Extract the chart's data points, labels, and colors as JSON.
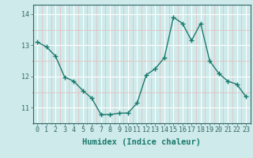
{
  "x": [
    0,
    1,
    2,
    3,
    4,
    5,
    6,
    7,
    8,
    9,
    10,
    11,
    12,
    13,
    14,
    15,
    16,
    17,
    18,
    19,
    20,
    21,
    22,
    23
  ],
  "y": [
    13.1,
    12.95,
    12.65,
    11.98,
    11.85,
    11.55,
    11.3,
    10.78,
    10.78,
    10.82,
    10.83,
    11.15,
    12.05,
    12.25,
    12.6,
    13.9,
    13.7,
    13.15,
    13.7,
    12.5,
    12.1,
    11.85,
    11.75,
    11.35
  ],
  "line_color": "#1a7a6e",
  "marker": "+",
  "marker_size": 4,
  "bg_color": "#ceeaea",
  "grid_color_major": "#ffffff",
  "grid_color_minor": "#e8b8b8",
  "xlabel": "Humidex (Indice chaleur)",
  "xlabel_fontsize": 7.5,
  "ylim": [
    10.5,
    14.3
  ],
  "xlim": [
    -0.5,
    23.5
  ],
  "yticks": [
    11,
    12,
    13,
    14
  ],
  "xticks": [
    0,
    1,
    2,
    3,
    4,
    5,
    6,
    7,
    8,
    9,
    10,
    11,
    12,
    13,
    14,
    15,
    16,
    17,
    18,
    19,
    20,
    21,
    22,
    23
  ],
  "tick_fontsize": 6,
  "linewidth": 1.0
}
